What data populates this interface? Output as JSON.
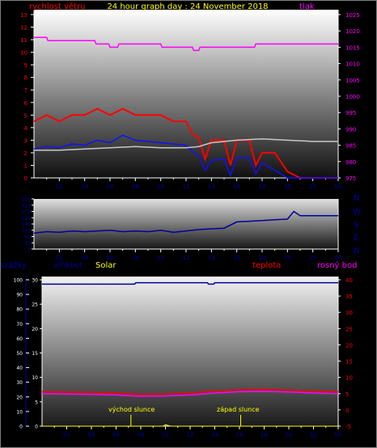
{
  "title": "24 hour graph day : 24 November 2018",
  "colors": {
    "wind_speed": "#ff0000",
    "wind_avg": "#1010ff",
    "wind_gust": "#c8c8c8",
    "pressure": "#ff00ff",
    "direction": "#0000a0",
    "humidity": "#0000a0",
    "solar": "#ffff00",
    "rain": "#0000a0",
    "temperature": "#ff0000",
    "dewpoint": "#ff00ff",
    "title": "#ffff00",
    "axis_text": "#ffffff",
    "compass_text": "#0000a0"
  },
  "chart_data": [
    {
      "type": "line",
      "name": "wind-pressure",
      "x_ticks": [
        "02",
        "04",
        "06",
        "08",
        "10",
        "12",
        "14",
        "16",
        "18",
        "20",
        "22",
        "00"
      ],
      "left_axis": {
        "label": "rychlost větru",
        "ticks": [
          "0",
          "1",
          "2",
          "3",
          "4",
          "5",
          "6",
          "7",
          "8",
          "9",
          "10",
          "11",
          "12",
          "13"
        ],
        "ylim": [
          0,
          13
        ]
      },
      "right_axis": {
        "label": "tlak",
        "ticks": [
          "975",
          "980",
          "985",
          "990",
          "995",
          "1000",
          "1005",
          "1010",
          "1015",
          "1020",
          "1025"
        ],
        "ylim": [
          975,
          1025
        ]
      },
      "series": [
        {
          "name": "wind_gust",
          "color": "#ff0000",
          "x": [
            0,
            1,
            2,
            3,
            4,
            5,
            6,
            7,
            8,
            9,
            10,
            11,
            12,
            12.5,
            13,
            13.5,
            14,
            15,
            15.5,
            16,
            17,
            17.5,
            18,
            19,
            20,
            21,
            22,
            23,
            24
          ],
          "y": [
            4.5,
            5,
            4.5,
            5,
            5,
            5.5,
            5,
            5.5,
            5,
            5,
            5,
            4.5,
            4.5,
            3.5,
            3.2,
            1.5,
            3,
            3,
            1,
            3,
            3,
            1,
            2,
            2,
            0.5,
            0,
            0,
            0,
            0
          ]
        },
        {
          "name": "wind_avg",
          "color": "#1010ff",
          "x": [
            0,
            1,
            2,
            3,
            4,
            5,
            6,
            7,
            8,
            9,
            10,
            11,
            12,
            12.5,
            13,
            13.5,
            14,
            15,
            15.5,
            16,
            17,
            17.5,
            18,
            19,
            20,
            21,
            22,
            23,
            24
          ],
          "y": [
            2.3,
            2.5,
            2.4,
            2.7,
            2.6,
            3,
            2.8,
            3.4,
            3,
            2.9,
            2.8,
            2.7,
            2.6,
            2.1,
            1.8,
            0.6,
            1.4,
            1.5,
            0.2,
            1.6,
            1.6,
            0.3,
            1.2,
            0.6,
            0,
            0,
            0,
            0,
            0
          ]
        },
        {
          "name": "wind_dir_avg",
          "color": "#c8c8c8",
          "x": [
            0,
            2,
            4,
            6,
            8,
            10,
            12,
            13,
            14,
            16,
            18,
            20,
            22,
            24
          ],
          "y": [
            2.2,
            2.2,
            2.3,
            2.4,
            2.5,
            2.4,
            2.4,
            2.5,
            2.8,
            3.0,
            3.1,
            3.0,
            2.9,
            2.9
          ]
        },
        {
          "name": "pressure",
          "color": "#ff00ff",
          "x": [
            0,
            1,
            1.1,
            4.8,
            4.9,
            5.9,
            6,
            6.6,
            6.7,
            10,
            10.1,
            12.5,
            12.6,
            13,
            13.1,
            17.4,
            17.5,
            17.9,
            18,
            24
          ],
          "y": [
            1018,
            1018,
            1017,
            1017,
            1016,
            1016,
            1015,
            1015,
            1016,
            1016,
            1015,
            1015,
            1014,
            1014,
            1015,
            1015,
            1016,
            1016,
            1016,
            1016
          ]
        }
      ]
    },
    {
      "type": "line",
      "name": "wind-direction",
      "x_ticks": [
        "02",
        "04",
        "06",
        "08",
        "10",
        "12",
        "14",
        "16",
        "18",
        "20",
        "22",
        "00"
      ],
      "left_axis": {
        "ticks": [
          "0",
          "45",
          "90",
          "135",
          "180",
          "225",
          "270",
          "315",
          "360"
        ],
        "ylim": [
          0,
          360
        ]
      },
      "compass": [
        "N",
        "W",
        "S",
        "E",
        "N"
      ],
      "series": [
        {
          "name": "direction",
          "color": "#0000a0",
          "x": [
            0,
            1,
            2,
            3,
            4,
            5,
            6,
            7,
            8,
            9,
            10,
            11,
            12,
            13,
            14,
            15,
            16,
            17,
            18,
            19,
            20,
            20.5,
            21,
            22,
            23,
            24
          ],
          "y": [
            115,
            125,
            120,
            130,
            125,
            130,
            135,
            125,
            130,
            125,
            135,
            120,
            130,
            140,
            145,
            150,
            195,
            200,
            205,
            210,
            215,
            270,
            240,
            240,
            240,
            240
          ]
        }
      ]
    },
    {
      "type": "line",
      "name": "rain-humidity-temperature",
      "x_ticks": [
        "02",
        "04",
        "06",
        "08",
        "10",
        "12",
        "14",
        "16",
        "18",
        "20",
        "22",
        "00"
      ],
      "left_axis": {
        "labels": [
          "srážky",
          "vlhkost",
          "Solar"
        ],
        "ticks": [
          "0",
          "10",
          "20",
          "30",
          "40",
          "50",
          "60",
          "70",
          "80",
          "90",
          "100"
        ],
        "rain_ticks": [
          "0",
          "5",
          "10",
          "15",
          "20",
          "25",
          "30"
        ],
        "ylim": [
          0,
          100
        ]
      },
      "right_axis": {
        "labels": [
          "teplota",
          "rosný bod"
        ],
        "ticks": [
          "-5",
          "0",
          "5",
          "10",
          "15",
          "20",
          "25",
          "30",
          "35",
          "40"
        ],
        "ylim": [
          -5,
          40
        ]
      },
      "annotations": [
        "východ slunce",
        "západ slunce"
      ],
      "series": [
        {
          "name": "humidity",
          "color": "#0000a0",
          "x": [
            0,
            7.5,
            7.6,
            13.4,
            13.5,
            13.9,
            14,
            24
          ],
          "y": [
            97,
            97,
            98,
            98,
            97,
            97,
            98,
            98
          ]
        },
        {
          "name": "temperature",
          "color": "#ff0000",
          "x": [
            0,
            2,
            4,
            6,
            8,
            10,
            12,
            14,
            16,
            18,
            20,
            22,
            24
          ],
          "y": [
            5.6,
            5.5,
            5.4,
            5.2,
            4.8,
            4.9,
            5.2,
            5.8,
            6.2,
            6.3,
            6.1,
            5.8,
            5.6
          ]
        },
        {
          "name": "dewpoint",
          "color": "#ff00ff",
          "x": [
            0,
            2,
            4,
            6,
            8,
            10,
            12,
            14,
            16,
            18,
            20,
            22,
            24
          ],
          "y": [
            5.0,
            4.9,
            4.8,
            4.6,
            4.2,
            4.3,
            4.6,
            5.2,
            5.6,
            5.7,
            5.5,
            5.2,
            5.0
          ]
        },
        {
          "name": "solar",
          "color": "#ffff00",
          "x": [
            0,
            9.8,
            10,
            10.2,
            10.4,
            24
          ],
          "y": [
            0,
            0,
            1,
            0.5,
            0,
            0
          ]
        }
      ],
      "sunrise_hour": 7.2,
      "sunset_hour": 16.1
    }
  ]
}
